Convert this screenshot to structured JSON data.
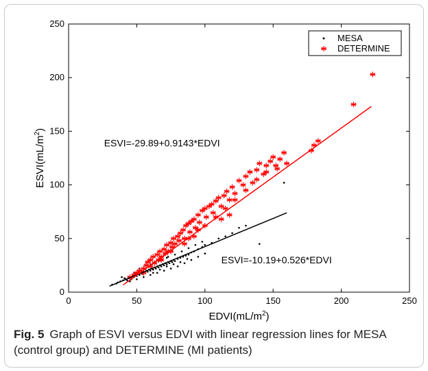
{
  "chart_data": {
    "type": "scatter",
    "xlabel": "EDVI(mL/m",
    "xlabel_sup": "2",
    "xlabel_suffix": ")",
    "ylabel": "ESVI(mL/m",
    "ylabel_sup": "2",
    "ylabel_suffix": ")",
    "xlim": [
      0,
      250
    ],
    "ylim": [
      0,
      250
    ],
    "x_ticks": [
      0,
      50,
      100,
      150,
      200,
      250
    ],
    "y_ticks": [
      0,
      50,
      100,
      150,
      200,
      250
    ],
    "grid": false,
    "legend_position": "top-right",
    "series": [
      {
        "name": "MESA",
        "color": "#000000",
        "marker": "dot",
        "regression": {
          "intercept": -10.19,
          "slope": 0.526,
          "x_range": [
            30,
            160
          ]
        },
        "equation_label": "ESVI=-10.19+0.526*EDVI",
        "points": [
          [
            35,
            8
          ],
          [
            38,
            10
          ],
          [
            40,
            11
          ],
          [
            42,
            12
          ],
          [
            44,
            13
          ],
          [
            45,
            14
          ],
          [
            46,
            12
          ],
          [
            47,
            15
          ],
          [
            48,
            14
          ],
          [
            49,
            16
          ],
          [
            50,
            15
          ],
          [
            51,
            17
          ],
          [
            52,
            16
          ],
          [
            53,
            18
          ],
          [
            54,
            17
          ],
          [
            55,
            19
          ],
          [
            56,
            18
          ],
          [
            57,
            20
          ],
          [
            58,
            19
          ],
          [
            59,
            21
          ],
          [
            60,
            20
          ],
          [
            61,
            22
          ],
          [
            62,
            21
          ],
          [
            63,
            23
          ],
          [
            64,
            22
          ],
          [
            65,
            24
          ],
          [
            66,
            23
          ],
          [
            67,
            25
          ],
          [
            68,
            24
          ],
          [
            69,
            26
          ],
          [
            70,
            25
          ],
          [
            71,
            27
          ],
          [
            72,
            26
          ],
          [
            73,
            28
          ],
          [
            74,
            27
          ],
          [
            75,
            29
          ],
          [
            76,
            28
          ],
          [
            77,
            30
          ],
          [
            78,
            29
          ],
          [
            80,
            31
          ],
          [
            82,
            32
          ],
          [
            84,
            33
          ],
          [
            86,
            34
          ],
          [
            88,
            35
          ],
          [
            90,
            37
          ],
          [
            92,
            38
          ],
          [
            95,
            40
          ],
          [
            98,
            42
          ],
          [
            100,
            44
          ],
          [
            105,
            46
          ],
          [
            110,
            50
          ],
          [
            115,
            52
          ],
          [
            120,
            55
          ],
          [
            45,
            10
          ],
          [
            50,
            12
          ],
          [
            55,
            14
          ],
          [
            60,
            16
          ],
          [
            65,
            18
          ],
          [
            70,
            20
          ],
          [
            75,
            22
          ],
          [
            80,
            24
          ],
          [
            85,
            27
          ],
          [
            90,
            30
          ],
          [
            95,
            33
          ],
          [
            100,
            36
          ],
          [
            52,
            22
          ],
          [
            58,
            25
          ],
          [
            63,
            28
          ],
          [
            68,
            31
          ],
          [
            73,
            33
          ],
          [
            78,
            35
          ],
          [
            83,
            38
          ],
          [
            88,
            41
          ],
          [
            93,
            44
          ],
          [
            98,
            47
          ],
          [
            48,
            18
          ],
          [
            53,
            20
          ],
          [
            60,
            26
          ],
          [
            66,
            29
          ],
          [
            72,
            32
          ],
          [
            140,
            45
          ],
          [
            158,
            102
          ],
          [
            125,
            60
          ],
          [
            130,
            62
          ],
          [
            32,
            7
          ],
          [
            36,
            9
          ],
          [
            41,
            13
          ],
          [
            43,
            11
          ],
          [
            39,
            14
          ],
          [
            62,
            18
          ],
          [
            67,
            21
          ],
          [
            72,
            24
          ],
          [
            77,
            26
          ],
          [
            82,
            28
          ],
          [
            87,
            31
          ]
        ]
      },
      {
        "name": "DETERMINE",
        "color": "#ff0000",
        "marker": "asterisk",
        "regression": {
          "intercept": -29.89,
          "slope": 0.9143,
          "x_range": [
            40,
            222
          ]
        },
        "equation_label": "ESVI=-29.89+0.9143*EDVI",
        "points": [
          [
            45,
            14
          ],
          [
            48,
            16
          ],
          [
            50,
            18
          ],
          [
            52,
            20
          ],
          [
            55,
            22
          ],
          [
            57,
            25
          ],
          [
            58,
            28
          ],
          [
            60,
            30
          ],
          [
            62,
            33
          ],
          [
            63,
            27
          ],
          [
            65,
            35
          ],
          [
            66,
            30
          ],
          [
            67,
            38
          ],
          [
            68,
            33
          ],
          [
            70,
            40
          ],
          [
            71,
            36
          ],
          [
            72,
            44
          ],
          [
            73,
            38
          ],
          [
            75,
            46
          ],
          [
            76,
            42
          ],
          [
            77,
            50
          ],
          [
            78,
            45
          ],
          [
            80,
            52
          ],
          [
            81,
            48
          ],
          [
            82,
            55
          ],
          [
            84,
            58
          ],
          [
            85,
            50
          ],
          [
            86,
            62
          ],
          [
            88,
            64
          ],
          [
            89,
            56
          ],
          [
            90,
            66
          ],
          [
            92,
            68
          ],
          [
            93,
            60
          ],
          [
            95,
            72
          ],
          [
            96,
            65
          ],
          [
            98,
            76
          ],
          [
            100,
            78
          ],
          [
            101,
            70
          ],
          [
            103,
            80
          ],
          [
            105,
            82
          ],
          [
            106,
            74
          ],
          [
            108,
            85
          ],
          [
            110,
            88
          ],
          [
            112,
            80
          ],
          [
            114,
            90
          ],
          [
            116,
            94
          ],
          [
            118,
            86
          ],
          [
            120,
            98
          ],
          [
            122,
            92
          ],
          [
            125,
            104
          ],
          [
            128,
            100
          ],
          [
            130,
            108
          ],
          [
            133,
            112
          ],
          [
            135,
            102
          ],
          [
            138,
            114
          ],
          [
            140,
            120
          ],
          [
            143,
            110
          ],
          [
            145,
            118
          ],
          [
            148,
            122
          ],
          [
            150,
            126
          ],
          [
            153,
            115
          ],
          [
            155,
            124
          ],
          [
            158,
            130
          ],
          [
            160,
            120
          ],
          [
            118,
            72
          ],
          [
            112,
            68
          ],
          [
            95,
            58
          ],
          [
            88,
            50
          ],
          [
            75,
            38
          ],
          [
            68,
            30
          ],
          [
            60,
            24
          ],
          [
            55,
            18
          ],
          [
            85,
            45
          ],
          [
            92,
            52
          ],
          [
            100,
            62
          ],
          [
            108,
            70
          ],
          [
            115,
            78
          ],
          [
            122,
            86
          ],
          [
            130,
            95
          ],
          [
            138,
            105
          ],
          [
            145,
            112
          ],
          [
            152,
            118
          ],
          [
            178,
            132
          ],
          [
            180,
            137
          ],
          [
            183,
            141
          ],
          [
            209,
            175
          ],
          [
            223,
            203
          ]
        ]
      }
    ]
  },
  "caption": {
    "figure_label": "Fig. 5",
    "text": "Graph of ESVI versus EDVI with linear regression lines for MESA (control group) and DETERMINE (MI patients)"
  }
}
